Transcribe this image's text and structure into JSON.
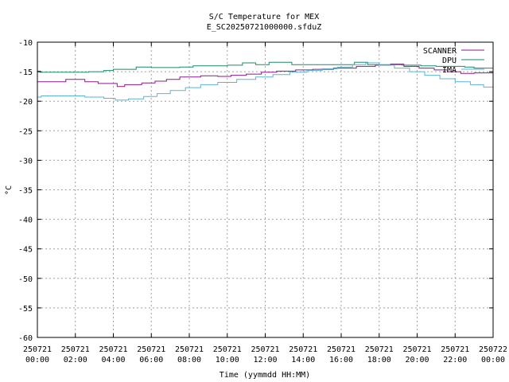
{
  "chart_data": {
    "type": "line",
    "title": "S/C Temperature for MEX",
    "subtitle": "E_SC20250721000000.sfduZ",
    "xlabel": "Time (yymmdd HH:MM)",
    "ylabel": "°C",
    "ylim": [
      -60,
      -10
    ],
    "yticks": [
      -10,
      -15,
      -20,
      -25,
      -30,
      -35,
      -40,
      -45,
      -50,
      -55,
      -60
    ],
    "xlim": [
      0,
      24
    ],
    "xticks": [
      {
        "x": 0,
        "date": "250721",
        "time": "00:00"
      },
      {
        "x": 2,
        "date": "250721",
        "time": "02:00"
      },
      {
        "x": 4,
        "date": "250721",
        "time": "04:00"
      },
      {
        "x": 6,
        "date": "250721",
        "time": "06:00"
      },
      {
        "x": 8,
        "date": "250721",
        "time": "08:00"
      },
      {
        "x": 10,
        "date": "250721",
        "time": "10:00"
      },
      {
        "x": 12,
        "date": "250721",
        "time": "12:00"
      },
      {
        "x": 14,
        "date": "250721",
        "time": "14:00"
      },
      {
        "x": 16,
        "date": "250721",
        "time": "16:00"
      },
      {
        "x": 18,
        "date": "250721",
        "time": "18:00"
      },
      {
        "x": 20,
        "date": "250721",
        "time": "20:00"
      },
      {
        "x": 22,
        "date": "250721",
        "time": "22:00"
      },
      {
        "x": 24,
        "date": "250722",
        "time": "00:00"
      }
    ],
    "grid": true,
    "legend_position": "top-right",
    "series": [
      {
        "name": "SCANNER",
        "color": "#8b1a8b",
        "x": [
          0,
          1.2,
          1.5,
          2.5,
          3.2,
          4.2,
          4.6,
          5.5,
          6.2,
          6.8,
          7.5,
          8.6,
          9.5,
          10.2,
          11.0,
          11.8,
          12.6,
          13.6,
          14.5,
          15.6,
          16.8,
          17.8,
          18.6,
          19.3,
          20.1,
          20.9,
          21.6,
          22.3,
          23.0,
          24
        ],
        "y": [
          -16.7,
          -16.7,
          -16.3,
          -16.7,
          -17.0,
          -17.5,
          -17.2,
          -16.9,
          -16.6,
          -16.3,
          -15.9,
          -15.7,
          -15.8,
          -15.6,
          -15.4,
          -15.1,
          -14.9,
          -14.7,
          -14.6,
          -14.4,
          -14.1,
          -13.9,
          -13.7,
          -14.1,
          -14.4,
          -14.7,
          -15.0,
          -15.3,
          -15.2,
          -15.5
        ]
      },
      {
        "name": "DPU",
        "color": "#1a8b6b",
        "x": [
          0,
          0.15,
          2.0,
          2.7,
          3.5,
          4.0,
          5.1,
          5.2,
          6.0,
          7.5,
          8.2,
          10.0,
          10.8,
          11.5,
          12.2,
          13.4,
          15.8,
          16.7,
          17.4,
          18.5,
          19.2,
          20.2,
          21.0,
          22.5,
          23.0,
          24
        ],
        "y": [
          -14.9,
          -15.1,
          -15.1,
          -15.0,
          -14.8,
          -14.6,
          -14.6,
          -14.2,
          -14.3,
          -14.2,
          -14.0,
          -13.9,
          -13.5,
          -13.8,
          -13.4,
          -13.8,
          -13.8,
          -13.4,
          -13.8,
          -13.8,
          -13.9,
          -14.0,
          -14.1,
          -14.2,
          -14.4,
          -14.5
        ]
      },
      {
        "name": "IMA",
        "color": "#5ab4d6",
        "x": [
          0,
          0.2,
          1.5,
          2.5,
          3.5,
          4.1,
          4.8,
          5.6,
          6.3,
          7.0,
          7.8,
          8.6,
          9.5,
          10.5,
          11.5,
          12.4,
          13.3,
          14.2,
          15.0,
          15.8,
          16.6,
          17.3,
          18.0,
          18.8,
          19.6,
          20.4,
          21.2,
          22.0,
          22.8,
          23.5,
          24
        ],
        "y": [
          -19.3,
          -19.1,
          -19.1,
          -19.3,
          -19.5,
          -19.8,
          -19.6,
          -19.2,
          -18.7,
          -18.2,
          -17.7,
          -17.2,
          -16.8,
          -16.3,
          -15.9,
          -15.5,
          -15.1,
          -14.8,
          -14.5,
          -14.2,
          -13.8,
          -13.5,
          -13.9,
          -14.4,
          -15.0,
          -15.6,
          -16.2,
          -16.7,
          -17.2,
          -17.6,
          -17.8
        ]
      }
    ]
  }
}
